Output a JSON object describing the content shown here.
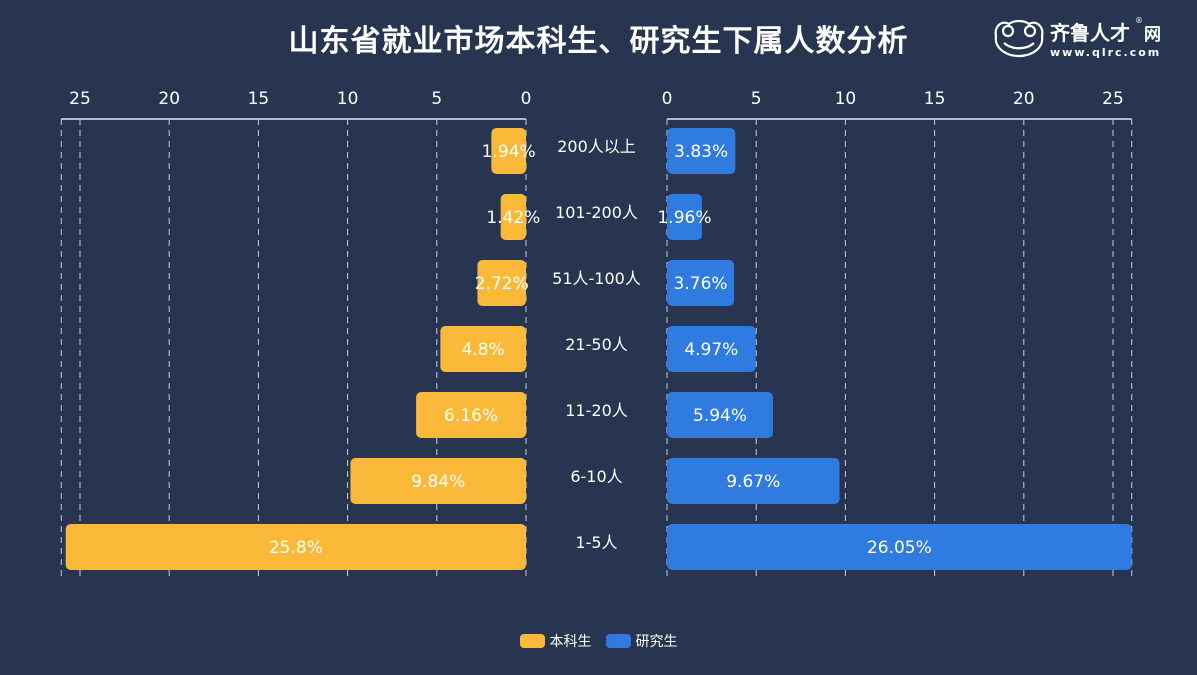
{
  "title": "山东省就业市场本科生、研究生下属人数分析",
  "logo": {
    "name": "齐鲁人才网",
    "url_text": "www.qlrc.com"
  },
  "chart_data": {
    "type": "bar",
    "orientation": "horizontal-mirrored",
    "categories": [
      "200人以上",
      "101-200人",
      "51人-100人",
      "21-50人",
      "11-20人",
      "6-10人",
      "1-5人"
    ],
    "series": [
      {
        "name": "本科生",
        "color": "#FBB93A",
        "side": "left",
        "values": [
          1.94,
          1.42,
          2.72,
          4.8,
          6.16,
          9.84,
          25.8
        ],
        "labels": [
          "1.94%",
          "1.42%",
          "2.72%",
          "4.8%",
          "6.16%",
          "9.84%",
          "25.8%"
        ]
      },
      {
        "name": "研究生",
        "color": "#2F7BE0",
        "side": "right",
        "values": [
          3.83,
          1.96,
          3.76,
          4.97,
          5.94,
          9.67,
          26.05
        ],
        "labels": [
          "3.83%",
          "1.96%",
          "3.76%",
          "4.97%",
          "5.94%",
          "9.67%",
          "26.05%"
        ]
      }
    ],
    "xlim": [
      0,
      26.05
    ],
    "ticks": [
      "0",
      "5",
      "10",
      "15",
      "20",
      "25"
    ],
    "grid": true,
    "legend": "bottom-center"
  }
}
